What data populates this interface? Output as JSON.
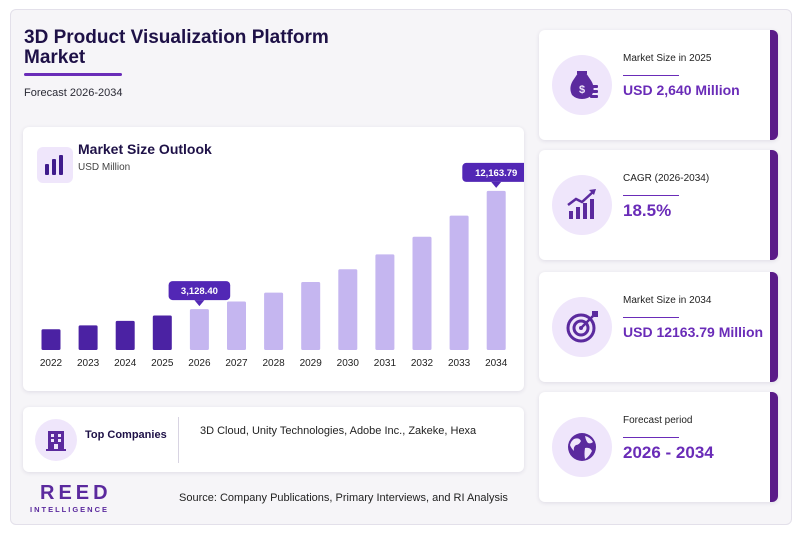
{
  "header": {
    "title": "3D Product Visualization Platform Market",
    "subtitle": "Forecast 2026-2034"
  },
  "chart_data": {
    "type": "bar",
    "title": "Market Size Outlook",
    "ylabel": "USD Million",
    "categories": [
      "2022",
      "2023",
      "2024",
      "2025",
      "2026",
      "2027",
      "2028",
      "2029",
      "2030",
      "2031",
      "2032",
      "2033",
      "2034"
    ],
    "values": [
      1590,
      1880,
      2230,
      2640,
      3128.4,
      3710,
      4390,
      5200,
      6170,
      7310,
      8660,
      10270,
      12163.79
    ],
    "historical_count": 4,
    "callouts": [
      {
        "label": "3,128.40",
        "index": 4
      },
      {
        "label": "12,163.79",
        "index": 12
      }
    ],
    "colors": {
      "historical": "#4b22a3",
      "forecast": "#c5b6f0",
      "callout": "#5227b5"
    },
    "ylim": [
      0,
      13000
    ]
  },
  "companies": {
    "label": "Top Companies",
    "list": "3D Cloud, Unity Technologies, Adobe Inc., Zakeke, Hexa"
  },
  "footer": {
    "logo_main": "REED",
    "logo_sub": "INTELLIGENCE",
    "source": "Source: Company Publications, Primary Interviews, and RI Analysis"
  },
  "stats": [
    {
      "label": "Market Size in 2025",
      "value": "USD 2,640 Million",
      "icon": "money-bag-icon"
    },
    {
      "label": "CAGR (2026-2034)",
      "value": "18.5%",
      "icon": "growth-chart-icon"
    },
    {
      "label": "Market Size in 2034",
      "value": "USD 12163.79 Million",
      "icon": "target-icon"
    },
    {
      "label": "Forecast period",
      "value": "2026 - 2034",
      "icon": "globe-icon"
    }
  ]
}
